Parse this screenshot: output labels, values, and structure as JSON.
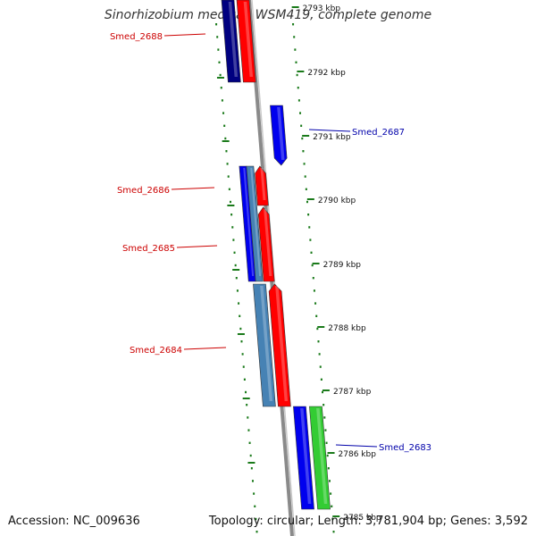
{
  "title": "Sinorhizobium medicae WSM419, complete genome",
  "accession": "Accession: NC_009636",
  "summary": "Topology: circular; Length: 3,781,904 bp; Genes: 3,592",
  "colors": {
    "backbone": "#8a8a8a",
    "ticks": "#1a7a1a",
    "reverse_label": "#cc0000",
    "forward_label": "#0000aa",
    "gene_red": "#ff0000",
    "gene_blue": "#0000ee",
    "gene_navy": "#000080",
    "gene_steel": "#4682b4",
    "gene_green": "#33cc33"
  },
  "scale_labels": [
    "2793 kbp",
    "2792 kbp",
    "2791 kbp",
    "2790 kbp",
    "2789 kbp",
    "2788 kbp",
    "2787 kbp",
    "2786 kbp",
    "2785 kbp"
  ],
  "gene_labels": [
    {
      "text": "Smed_2688",
      "strand": "reverse"
    },
    {
      "text": "Smed_2687",
      "strand": "forward"
    },
    {
      "text": "Smed_2686",
      "strand": "reverse"
    },
    {
      "text": "Smed_2685",
      "strand": "reverse"
    },
    {
      "text": "Smed_2684",
      "strand": "reverse"
    },
    {
      "text": "Smed_2683",
      "strand": "forward"
    }
  ]
}
